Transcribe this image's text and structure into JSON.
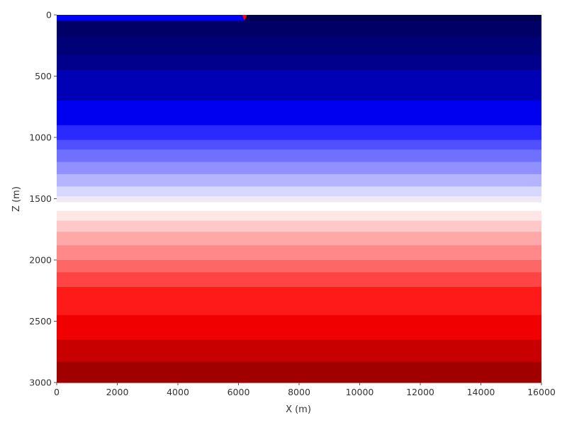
{
  "chart_data": {
    "type": "heatmap",
    "colormap": "seismic",
    "xlabel": "X (m)",
    "ylabel": "Z (m)",
    "xlim": [
      0,
      16000
    ],
    "ylim": [
      3000,
      0
    ],
    "y_axis_inverted": true,
    "x_ticks": [
      0,
      2000,
      4000,
      6000,
      8000,
      10000,
      12000,
      14000,
      16000
    ],
    "x_tick_labels": [
      "0",
      "2000",
      "4000",
      "6000",
      "8000",
      "10000",
      "12000",
      "14000",
      "16000"
    ],
    "y_ticks": [
      0,
      500,
      1000,
      1500,
      2000,
      2500,
      3000
    ],
    "y_tick_labels": [
      "0",
      "500",
      "1000",
      "1500",
      "2000",
      "2500",
      "3000"
    ],
    "depth_layers": {
      "z_top": [
        0,
        50,
        180,
        330,
        450,
        700,
        900,
        1020,
        1100,
        1200,
        1300,
        1400,
        1480,
        1530,
        1600,
        1680,
        1770,
        1880,
        2000,
        2100,
        2220,
        2450,
        2650,
        2830
      ],
      "color": [
        "#000055",
        "#000066",
        "#000077",
        "#00008c",
        "#0000b4",
        "#0000f0",
        "#2a2aff",
        "#5050ff",
        "#7070ff",
        "#9090ff",
        "#b4b4ff",
        "#d8d8ff",
        "#f0e8f4",
        "#ffffff",
        "#ffe6e6",
        "#ffc8c8",
        "#ffa8a8",
        "#ff8888",
        "#ff6666",
        "#ff4444",
        "#ff1a1a",
        "#f00000",
        "#c80000",
        "#a00000"
      ]
    },
    "surface_strip": {
      "x_start": 0,
      "x_end": 6200,
      "z_top": 0,
      "z_bottom": 45,
      "color": "#0000ff"
    },
    "source_marker": {
      "x": 6200,
      "z": 0,
      "shape": "triangle-down",
      "color": "#ff0000"
    },
    "grid": false
  }
}
